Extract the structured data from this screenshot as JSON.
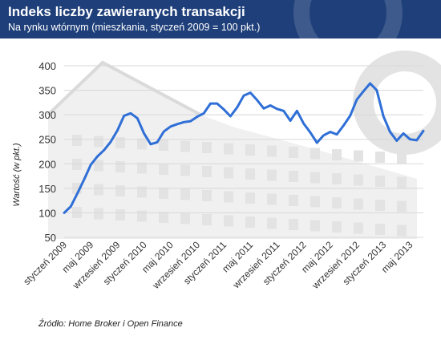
{
  "header": {
    "title": "Indeks liczby zawieranych transakcji",
    "subtitle": "Na rynku wtórnym (mieszkania, styczeń 2009 = 100 pkt.)"
  },
  "source": "Źródło: Home Broker i Open Finance",
  "colors": {
    "header_bg": "#1f3f7a",
    "line": "#2f6fd6",
    "watermark": "#e3e3e3"
  },
  "chart_data": {
    "type": "line",
    "title": "Indeks liczby zawieranych transakcji",
    "subtitle": "Na rynku wtórnym (mieszkania, styczeń 2009 = 100 pkt.)",
    "ylabel": "Wartość (w pkt.)",
    "xlabel": "",
    "ylim": [
      50,
      400
    ],
    "yticks": [
      50,
      100,
      150,
      200,
      250,
      300,
      350,
      400
    ],
    "grid": true,
    "xtick_labels": [
      {
        "month_index": 0,
        "label": "styczeń 2009"
      },
      {
        "month_index": 4,
        "label": "maj 2009"
      },
      {
        "month_index": 8,
        "label": "wrzesień 2009"
      },
      {
        "month_index": 12,
        "label": "styczeń 2010"
      },
      {
        "month_index": 16,
        "label": "maj 2010"
      },
      {
        "month_index": 20,
        "label": "wrzesień 2010"
      },
      {
        "month_index": 24,
        "label": "styczeń 2011"
      },
      {
        "month_index": 28,
        "label": "maj 2011"
      },
      {
        "month_index": 32,
        "label": "wrzesień 2011"
      },
      {
        "month_index": 36,
        "label": "styczeń 2012"
      },
      {
        "month_index": 40,
        "label": "maj 2012"
      },
      {
        "month_index": 44,
        "label": "wrzesień 2012"
      },
      {
        "month_index": 48,
        "label": "styczeń 2013"
      },
      {
        "month_index": 52,
        "label": "maj 2013"
      }
    ],
    "series": [
      {
        "values": [
          100,
          113,
          140,
          168,
          198,
          215,
          228,
          245,
          268,
          298,
          303,
          293,
          262,
          240,
          244,
          266,
          276,
          281,
          285,
          287,
          296,
          303,
          323,
          323,
          311,
          297,
          315,
          339,
          345,
          330,
          313,
          319,
          312,
          308,
          288,
          308,
          282,
          264,
          243,
          258,
          265,
          260,
          278,
          298,
          331,
          348,
          364,
          350,
          297,
          265,
          247,
          262,
          250,
          248,
          267
        ]
      }
    ]
  }
}
